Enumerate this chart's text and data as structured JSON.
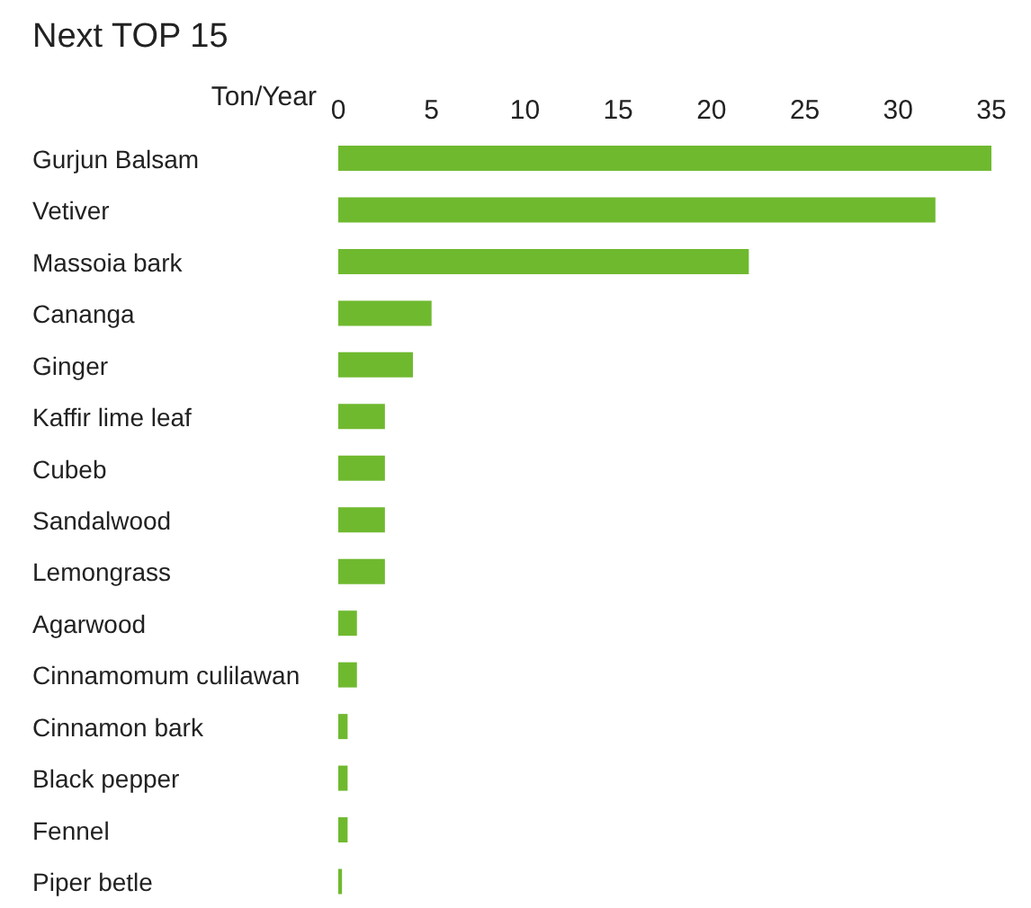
{
  "chart_data": {
    "type": "bar",
    "orientation": "horizontal",
    "title": "Next TOP 15",
    "xlabel": "Ton/Year",
    "categories": [
      "Gurjun Balsam",
      "Vetiver",
      "Massoia bark",
      "Cananga",
      "Ginger",
      "Kaffir lime leaf",
      "Cubeb",
      "Sandalwood",
      "Lemongrass",
      "Agarwood",
      "Cinnamomum culilawan",
      "Cinnamon bark",
      "Black pepper",
      "Fennel",
      "Piper betle"
    ],
    "values": [
      35,
      32,
      22,
      5,
      4,
      2.5,
      2.5,
      2.5,
      2.5,
      1,
      1,
      0.5,
      0.5,
      0.5,
      0.2
    ],
    "color": "#6fb92f",
    "xlim": [
      0,
      35
    ],
    "xticks": [
      0,
      5,
      10,
      15,
      20,
      25,
      30,
      35
    ],
    "grid": false,
    "legend": false
  }
}
